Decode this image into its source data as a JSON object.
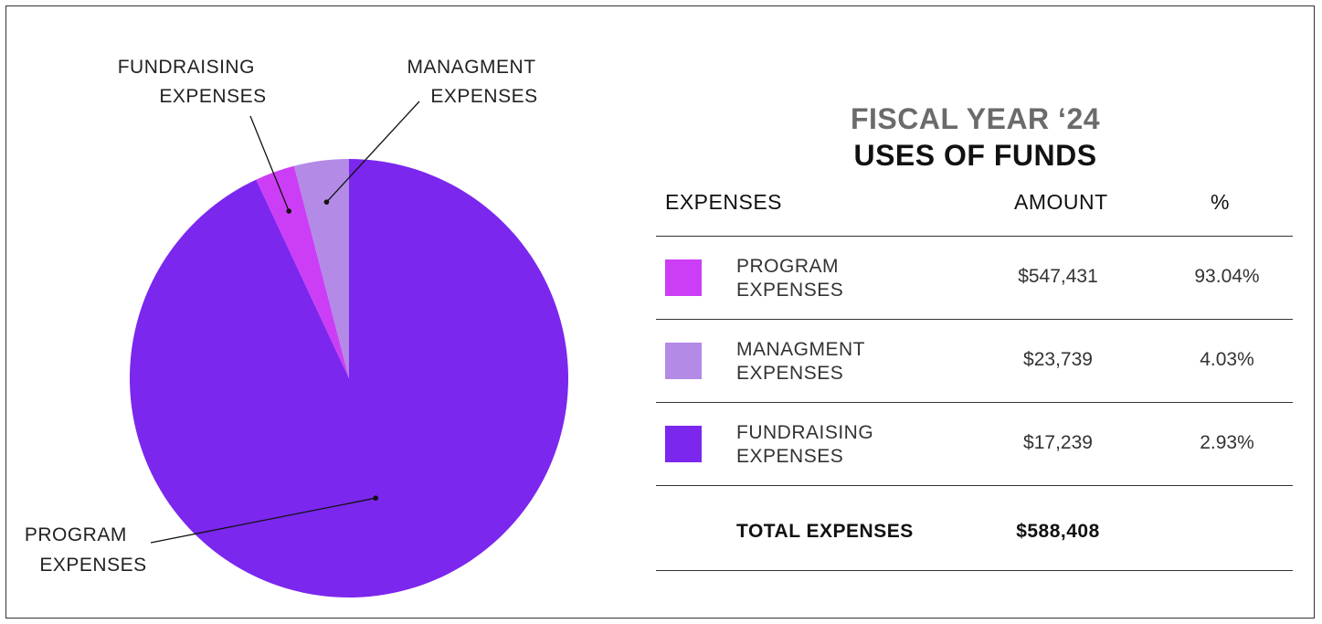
{
  "colors": {
    "program_swatch": "#cc3ef5",
    "managment_swatch": "#b38ae6",
    "fundraising_swatch": "#7b27ee",
    "pie_program": "#7b27ee",
    "pie_managment": "#b38ae6",
    "pie_fundraising": "#cc3ef5"
  },
  "chart_data": {
    "type": "pie",
    "slices": [
      {
        "key": "program",
        "label_lines": [
          "PROGRAM",
          "EXPENSES"
        ],
        "value": 93.04
      },
      {
        "key": "fundraising",
        "label_lines": [
          "FUNDRAISING",
          "EXPENSES"
        ],
        "value": 2.93
      },
      {
        "key": "managment",
        "label_lines": [
          "MANAGMENT",
          "EXPENSES"
        ],
        "value": 4.03
      }
    ]
  },
  "heading": {
    "line1": "FISCAL YEAR ‘24",
    "line2": "USES OF FUNDS"
  },
  "table": {
    "headers": {
      "expenses": "EXPENSES",
      "amount": "AMOUNT",
      "percent": "%"
    },
    "rows": [
      {
        "label_line1": "PROGRAM",
        "label_line2": "EXPENSES",
        "amount": "$547,431",
        "percent": "93.04%"
      },
      {
        "label_line1": "MANAGMENT",
        "label_line2": "EXPENSES",
        "amount": "$23,739",
        "percent": "4.03%"
      },
      {
        "label_line1": "FUNDRAISING",
        "label_line2": "EXPENSES",
        "amount": "$17,239",
        "percent": "2.93%"
      }
    ],
    "total": {
      "label": "TOTAL EXPENSES",
      "amount": "$588,408"
    }
  }
}
